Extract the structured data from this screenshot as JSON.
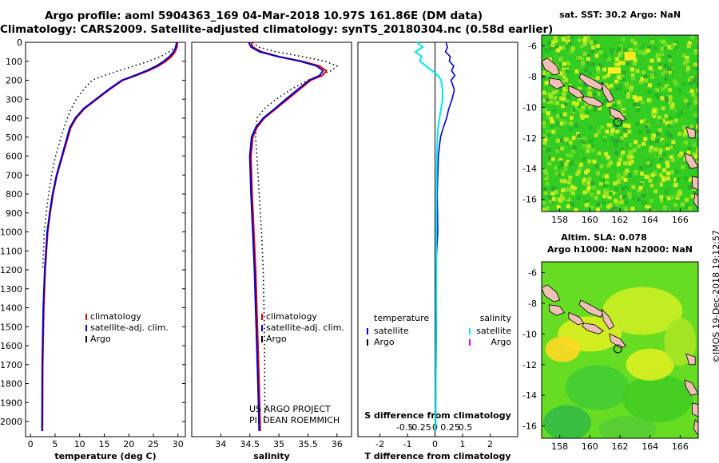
{
  "titles": {
    "line1": "Argo profile: aoml 5904363_169 04-Mar-2018 10.97S 161.86E (DM data)",
    "line2": "Climatology: CARS2009. Satellite-adjusted climatology: synTS_20180304.nc (0.58d earlier)"
  },
  "stamp": "©IMOS 19-Dec-2018 19:12:57",
  "colors": {
    "climatology": "#e00000",
    "satellite": "#0000d0",
    "argo": "#000000",
    "cyan": "#00e8f0",
    "magenta": "#e000e0",
    "land": "#f0c0b8",
    "sst_bg": "#33cc22",
    "sla_bg": "#66dd22"
  },
  "chart_data": [
    {
      "type": "line",
      "name": "temperature-profile",
      "xlabel": "temperature (deg C)",
      "ylabel": "",
      "xlim": [
        -1,
        31.5
      ],
      "ylim": [
        2080,
        0
      ],
      "xticks": [
        0,
        5,
        10,
        15,
        20,
        25,
        30
      ],
      "yticks": [
        0,
        100,
        200,
        300,
        400,
        500,
        600,
        700,
        800,
        900,
        1000,
        1100,
        1200,
        1300,
        1400,
        1500,
        1600,
        1700,
        1800,
        1900,
        2000
      ],
      "legend": {
        "placement": "lower-middle",
        "entries": [
          "climatology",
          "satellite-adj. clim.",
          "Argo"
        ]
      },
      "series": [
        {
          "name": "climatology",
          "x": [
            29.9,
            29.8,
            29.4,
            28.7,
            27.5,
            26.0,
            24.0,
            21.5,
            18.8,
            16.0,
            13.5,
            11.0,
            9.3,
            8.2,
            6.5,
            5.4,
            4.6,
            4.0,
            3.5,
            3.0,
            2.7,
            2.5,
            2.45
          ],
          "y": [
            0,
            25,
            50,
            75,
            100,
            125,
            150,
            175,
            200,
            250,
            300,
            350,
            400,
            450,
            600,
            700,
            800,
            900,
            1000,
            1200,
            1400,
            1700,
            2050
          ]
        },
        {
          "name": "satellite-adj. clim.",
          "x": [
            29.7,
            29.6,
            29.1,
            28.3,
            27.1,
            25.6,
            23.6,
            21.2,
            18.6,
            15.8,
            13.3,
            10.8,
            9.1,
            8.0,
            6.4,
            5.3,
            4.5,
            3.9,
            3.4,
            2.9,
            2.6,
            2.4,
            2.35
          ],
          "y": [
            0,
            25,
            50,
            75,
            100,
            125,
            150,
            175,
            200,
            250,
            300,
            350,
            400,
            450,
            600,
            700,
            800,
            900,
            1000,
            1200,
            1400,
            1700,
            2050
          ]
        },
        {
          "name": "Argo",
          "x": [
            29.8,
            29.4,
            28.2,
            26.5,
            24.0,
            21.0,
            18.0,
            15.0,
            12.5,
            10.8,
            9.3,
            8.3,
            7.5,
            6.2,
            5.1,
            4.3,
            3.7,
            3.2,
            2.8,
            2.5
          ],
          "y": [
            0,
            25,
            50,
            75,
            100,
            125,
            150,
            175,
            200,
            250,
            300,
            350,
            400,
            500,
            600,
            700,
            800,
            900,
            1000,
            1200
          ]
        }
      ]
    },
    {
      "type": "line",
      "name": "salinity-profile",
      "xlabel": "salinity",
      "ylabel": "",
      "xlim": [
        33.5,
        36.25
      ],
      "ylim": [
        2080,
        0
      ],
      "xticks": [
        34,
        34.5,
        35,
        35.5,
        36
      ],
      "xticklabels": [
        "34",
        "34.5",
        "35",
        "35.5",
        "36"
      ],
      "legend": {
        "placement": "lower-middle",
        "entries": [
          "climatology",
          "satellite-adj. clim.",
          "Argo"
        ]
      },
      "annotation": [
        "US ARGO PROJECT",
        "PI: DEAN ROEMMICH"
      ],
      "series": [
        {
          "name": "climatology",
          "x": [
            34.52,
            34.55,
            34.7,
            35.0,
            35.4,
            35.7,
            35.82,
            35.75,
            35.55,
            35.35,
            35.15,
            34.95,
            34.75,
            34.62,
            34.55,
            34.52,
            34.54,
            34.57,
            34.6,
            34.63,
            34.66,
            34.68
          ],
          "y": [
            0,
            25,
            50,
            75,
            100,
            125,
            150,
            175,
            200,
            250,
            300,
            350,
            400,
            450,
            500,
            600,
            800,
            1000,
            1200,
            1500,
            1800,
            2050
          ]
        },
        {
          "name": "satellite-adj. clim.",
          "x": [
            34.48,
            34.52,
            34.67,
            34.98,
            35.37,
            35.65,
            35.76,
            35.7,
            35.52,
            35.32,
            35.12,
            34.93,
            34.73,
            34.6,
            34.53,
            34.5,
            34.52,
            34.55,
            34.58,
            34.61,
            34.64,
            34.66
          ],
          "y": [
            0,
            25,
            50,
            75,
            100,
            125,
            150,
            175,
            200,
            250,
            300,
            350,
            400,
            450,
            500,
            600,
            800,
            1000,
            1200,
            1500,
            1800,
            2050
          ]
        },
        {
          "name": "Argo",
          "x": [
            34.55,
            34.65,
            34.95,
            35.4,
            35.8,
            36.0,
            35.9,
            35.7,
            35.5,
            35.2,
            34.95,
            34.75,
            34.62,
            34.6,
            34.62,
            34.66,
            34.7,
            34.73,
            34.75,
            34.76
          ],
          "y": [
            0,
            25,
            50,
            75,
            100,
            125,
            150,
            175,
            200,
            250,
            300,
            350,
            400,
            500,
            600,
            800,
            1000,
            1200,
            1500,
            2000
          ]
        }
      ]
    },
    {
      "type": "line",
      "name": "difference-profile",
      "xlabel": "T difference from climatology",
      "xlabel_top": "S difference from climatology",
      "ylim": [
        2080,
        0
      ],
      "xlim_T": [
        -2.8,
        3.0
      ],
      "xticks_T": [
        -2,
        -1,
        0,
        1,
        2
      ],
      "xticks_S": [
        "-0.5",
        "-0.25",
        "0",
        "0.25",
        "0.5"
      ],
      "legend_left": {
        "title": "temperature",
        "entries": [
          "satellite",
          "Argo"
        ]
      },
      "legend_right": {
        "title": "salinity",
        "entries": [
          "satellite",
          "Argo"
        ]
      },
      "series": [
        {
          "name": "T satellite",
          "x": [
            0.4,
            0.45,
            0.38,
            0.55,
            0.52,
            0.68,
            0.6,
            0.72,
            0.58,
            0.7,
            0.62,
            0.5,
            0.42,
            0.3,
            0.2,
            0.12,
            0.08,
            0.1,
            0.06,
            0.03,
            0.05,
            0.03,
            0.02
          ],
          "y": [
            0,
            25,
            50,
            75,
            100,
            125,
            150,
            175,
            200,
            250,
            300,
            350,
            400,
            450,
            500,
            600,
            800,
            1000,
            1100,
            1200,
            1500,
            1800,
            2050
          ]
        },
        {
          "name": "S satellite",
          "x": [
            -0.6,
            -0.4,
            -0.65,
            -0.45,
            -0.5,
            -0.3,
            -0.1,
            0.1,
            0.2,
            0.25,
            0.25,
            0.2,
            0.15,
            0.1,
            0.08,
            0.06,
            0.05,
            0.04,
            0.04,
            0.03,
            0.02
          ],
          "y": [
            0,
            25,
            50,
            75,
            100,
            125,
            150,
            175,
            200,
            250,
            300,
            350,
            400,
            450,
            500,
            600,
            800,
            1000,
            1200,
            1600,
            2050
          ]
        }
      ]
    },
    {
      "type": "heatmap",
      "name": "sst-map",
      "title": "sat. SST: 30.2 Argo: NaN",
      "xlim": [
        156.8,
        167.2
      ],
      "ylim": [
        -16.8,
        -5.3
      ],
      "xticks": [
        158,
        160,
        162,
        164,
        166
      ],
      "yticks": [
        -6,
        -8,
        -10,
        -12,
        -14,
        -16
      ],
      "marker": {
        "lon": 161.86,
        "lat": -10.97
      }
    },
    {
      "type": "heatmap",
      "name": "sla-map",
      "title": "Altim. SLA: 0.078",
      "subtitle": "Argo h1000: NaN h2000: NaN",
      "xlim": [
        156.8,
        167.2
      ],
      "ylim": [
        -16.8,
        -5.3
      ],
      "xticks": [
        158,
        160,
        162,
        164,
        166
      ],
      "yticks": [
        -6,
        -8,
        -10,
        -12,
        -14,
        -16
      ],
      "marker": {
        "lon": 161.86,
        "lat": -10.97
      }
    }
  ]
}
